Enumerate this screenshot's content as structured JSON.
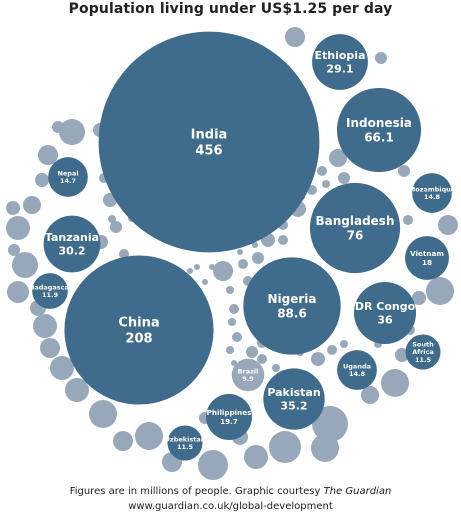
{
  "chart_data": {
    "type": "bubble",
    "title": "Population living under US$1.25 per day",
    "unit": "millions of people",
    "colors": {
      "labeled": "#3f6b8c",
      "unlabeled": "#98a8bb",
      "label_text": "#ffffff"
    },
    "bubbles": [
      {
        "name": "India",
        "value": 456
      },
      {
        "name": "China",
        "value": 208
      },
      {
        "name": "Nigeria",
        "value": 88.6
      },
      {
        "name": "Bangladesh",
        "value": 76
      },
      {
        "name": "Indonesia",
        "value": 66.1
      },
      {
        "name": "DR Congo",
        "value": 36
      },
      {
        "name": "Pakistan",
        "value": 35.2
      },
      {
        "name": "Tanzania",
        "value": 30.2
      },
      {
        "name": "Ethiopia",
        "value": 29.1
      },
      {
        "name": "Philippines",
        "value": 19.7
      },
      {
        "name": "Vietnam",
        "value": 18
      },
      {
        "name": "Mozambique",
        "value": 14.8
      },
      {
        "name": "Uganda",
        "value": 14.8
      },
      {
        "name": "Nepal",
        "value": 14.7
      },
      {
        "name": "Madagascar",
        "value": 11.9
      },
      {
        "name": "South Africa",
        "value": 11.5
      },
      {
        "name": "Uzbekistan",
        "value": 11.5
      },
      {
        "name": "Brazil",
        "value": 9.9
      }
    ]
  },
  "footer": {
    "note_prefix": "Figures are in millions of people. Graphic courtesy ",
    "note_source": "The Guardian",
    "url": "www.guardian.co.uk/global-development"
  }
}
